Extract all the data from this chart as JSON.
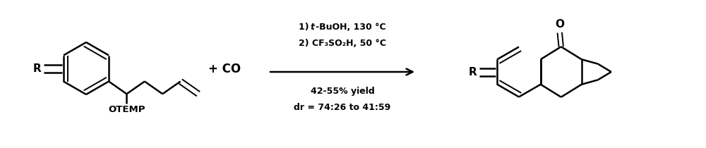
{
  "bg_color": "#ffffff",
  "text_color": "#000000",
  "lw": 1.8,
  "lw_thin": 1.4,
  "fig_width": 10.0,
  "fig_height": 2.1,
  "dpi": 100,
  "cond1_num": "1) ",
  "cond1_t": "t",
  "cond1_rest": "-BuOH, 130 °C",
  "cond2": "2) CF₃SO₂H, 50 °C",
  "cond3": "42-55% yield",
  "cond4": "dr = 74:26 to 41:59",
  "plus_co": "+ CO"
}
